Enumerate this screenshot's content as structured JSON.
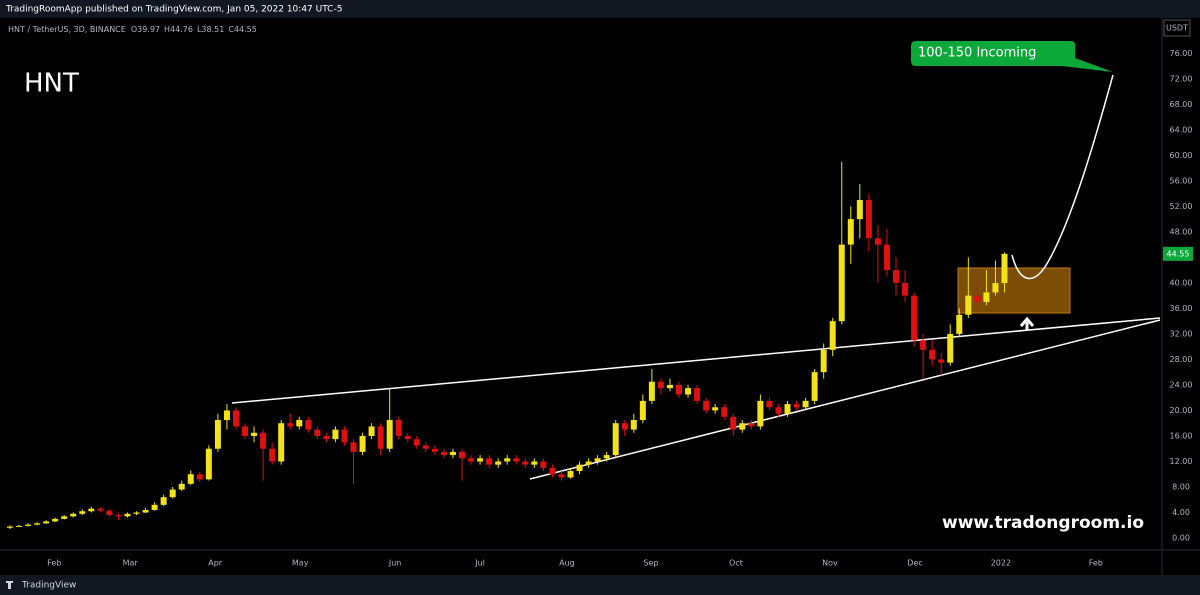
{
  "top_bar": "TradingRoomApp published on TradingView.com, Jan 05, 2022 10:47 UTC-5",
  "footer": "TradingView",
  "chart_data": {
    "type": "candlestick",
    "symbol": "HNT / TetherUS, 3D, BINANCE",
    "ohlc_legend_labels": [
      "O",
      "H",
      "L",
      "C"
    ],
    "title": "HNT",
    "annotations": [
      "100-150 Incoming",
      "www.tradongroom.io"
    ],
    "y_unit": "USDT",
    "up_color": "#f2e21a",
    "down_color": "#e01010",
    "grid": false,
    "xlim": [
      -1.1,
      127.2
    ],
    "xticks": [
      {
        "value": 4.9,
        "label": "Feb"
      },
      {
        "value": 13.3,
        "label": "Mar"
      },
      {
        "value": 22.7,
        "label": "Apr"
      },
      {
        "value": 32.1,
        "label": "May"
      },
      {
        "value": 42.6,
        "label": "Jun"
      },
      {
        "value": 52,
        "label": "Jul"
      },
      {
        "value": 61.6,
        "label": "Aug"
      },
      {
        "value": 70.9,
        "label": "Sep"
      },
      {
        "value": 80.3,
        "label": "Oct"
      },
      {
        "value": 90.7,
        "label": "Nov"
      },
      {
        "value": 100.1,
        "label": "Dec"
      },
      {
        "value": 109.6,
        "label": "2022"
      },
      {
        "value": 120.1,
        "label": "Feb"
      }
    ],
    "ylim": [
      -4.7,
      80.9
    ],
    "yticks": [
      {
        "value": 0,
        "label": "0.00"
      },
      {
        "value": 4,
        "label": "4.00"
      },
      {
        "value": 8,
        "label": "8.00"
      },
      {
        "value": 12,
        "label": "12.00"
      },
      {
        "value": 16,
        "label": "16.00"
      },
      {
        "value": 20,
        "label": "20.00"
      },
      {
        "value": 24,
        "label": "24.00"
      },
      {
        "value": 28,
        "label": "28.00"
      },
      {
        "value": 32,
        "label": "32.00"
      },
      {
        "value": 36,
        "label": "36.00"
      },
      {
        "value": 40,
        "label": "40.00"
      },
      {
        "value": 44,
        "label": "44.00"
      },
      {
        "value": 48,
        "label": "48.00"
      },
      {
        "value": 52,
        "label": "52.00"
      },
      {
        "value": 56,
        "label": "56.00"
      },
      {
        "value": 60,
        "label": "60.00"
      },
      {
        "value": 64,
        "label": "64.00"
      },
      {
        "value": 68,
        "label": "68.00"
      },
      {
        "value": 72,
        "label": "72.00"
      },
      {
        "value": 76,
        "label": "76.00"
      }
    ],
    "ohlc": [
      [
        1.6,
        2.0,
        1.4,
        1.8
      ],
      [
        1.8,
        2.1,
        1.7,
        1.9
      ],
      [
        1.9,
        2.3,
        1.8,
        2.1
      ],
      [
        2.1,
        2.5,
        2.0,
        2.3
      ],
      [
        2.3,
        2.8,
        2.2,
        2.6
      ],
      [
        2.6,
        3.2,
        2.5,
        3.0
      ],
      [
        3.0,
        3.6,
        2.9,
        3.4
      ],
      [
        3.4,
        4.0,
        3.2,
        3.8
      ],
      [
        3.8,
        4.5,
        3.6,
        4.2
      ],
      [
        4.2,
        4.9,
        4.0,
        4.6
      ],
      [
        4.6,
        4.8,
        4.0,
        4.3
      ],
      [
        4.3,
        4.5,
        3.3,
        3.6
      ],
      [
        3.6,
        3.9,
        2.8,
        3.4
      ],
      [
        3.4,
        4.0,
        3.2,
        3.8
      ],
      [
        3.8,
        4.2,
        3.6,
        4.0
      ],
      [
        4.0,
        4.7,
        3.9,
        4.4
      ],
      [
        4.4,
        5.6,
        4.3,
        5.2
      ],
      [
        5.2,
        6.8,
        5.0,
        6.4
      ],
      [
        6.4,
        8.0,
        6.2,
        7.6
      ],
      [
        7.6,
        9.0,
        7.4,
        8.5
      ],
      [
        8.5,
        10.6,
        8.3,
        10.0
      ],
      [
        10.0,
        10.4,
        8.8,
        9.2
      ],
      [
        9.2,
        14.5,
        9.0,
        14.0
      ],
      [
        14.0,
        19.5,
        13.5,
        18.5
      ],
      [
        18.5,
        21.0,
        17.0,
        20.0
      ],
      [
        20.0,
        20.5,
        17.0,
        17.5
      ],
      [
        17.5,
        18.0,
        15.5,
        16.0
      ],
      [
        16.0,
        17.5,
        15.0,
        16.5
      ],
      [
        16.5,
        17.0,
        9.0,
        14.0
      ],
      [
        14.0,
        15.0,
        11.5,
        12.0
      ],
      [
        12.0,
        18.5,
        11.5,
        18.0
      ],
      [
        18.0,
        19.5,
        17.0,
        17.5
      ],
      [
        17.5,
        19.0,
        17.0,
        18.5
      ],
      [
        18.5,
        19.0,
        16.5,
        17.0
      ],
      [
        17.0,
        17.5,
        15.5,
        16.0
      ],
      [
        16.0,
        16.5,
        15.0,
        15.5
      ],
      [
        15.5,
        17.5,
        15.0,
        17.0
      ],
      [
        17.0,
        17.5,
        14.5,
        15.0
      ],
      [
        15.0,
        15.5,
        8.5,
        13.5
      ],
      [
        13.5,
        16.5,
        13.0,
        16.0
      ],
      [
        16.0,
        18.0,
        15.5,
        17.5
      ],
      [
        17.5,
        18.0,
        13.0,
        14.0
      ],
      [
        14.0,
        23.5,
        13.5,
        18.5
      ],
      [
        18.5,
        19.0,
        15.5,
        16.0
      ],
      [
        16.0,
        16.5,
        15.0,
        15.5
      ],
      [
        15.5,
        16.0,
        14.0,
        14.5
      ],
      [
        14.5,
        15.0,
        13.5,
        14.0
      ],
      [
        14.0,
        14.5,
        13.0,
        13.5
      ],
      [
        13.5,
        14.0,
        12.5,
        13.0
      ],
      [
        13.0,
        14.0,
        12.5,
        13.5
      ],
      [
        13.5,
        14.0,
        9.0,
        12.5
      ],
      [
        12.5,
        13.0,
        11.5,
        12.0
      ],
      [
        12.0,
        13.0,
        11.5,
        12.5
      ],
      [
        12.5,
        13.0,
        11.0,
        11.5
      ],
      [
        11.5,
        12.5,
        11.0,
        12.0
      ],
      [
        12.0,
        13.0,
        11.5,
        12.5
      ],
      [
        12.5,
        13.0,
        11.5,
        12.0
      ],
      [
        12.0,
        12.5,
        11.0,
        11.5
      ],
      [
        11.5,
        12.5,
        11.0,
        12.0
      ],
      [
        12.0,
        12.5,
        10.5,
        11.0
      ],
      [
        11.0,
        11.5,
        9.5,
        10.0
      ],
      [
        10.0,
        10.5,
        9.0,
        9.5
      ],
      [
        9.5,
        11.0,
        9.3,
        10.5
      ],
      [
        10.5,
        12.0,
        10.0,
        11.5
      ],
      [
        11.5,
        12.5,
        11.0,
        12.0
      ],
      [
        12.0,
        13.0,
        11.5,
        12.5
      ],
      [
        12.5,
        13.5,
        12.0,
        13.0
      ],
      [
        13.0,
        18.5,
        12.5,
        18.0
      ],
      [
        18.0,
        18.5,
        16.0,
        17.0
      ],
      [
        17.0,
        19.5,
        16.5,
        18.5
      ],
      [
        18.5,
        22.5,
        18.0,
        21.5
      ],
      [
        21.5,
        26.5,
        21.0,
        24.5
      ],
      [
        24.5,
        25.0,
        22.5,
        23.5
      ],
      [
        23.5,
        25.0,
        23.0,
        24.0
      ],
      [
        24.0,
        24.5,
        22.0,
        22.5
      ],
      [
        22.5,
        24.0,
        22.0,
        23.5
      ],
      [
        23.5,
        24.0,
        21.0,
        21.5
      ],
      [
        21.5,
        22.0,
        19.5,
        20.0
      ],
      [
        20.0,
        21.0,
        19.5,
        20.5
      ],
      [
        20.5,
        21.0,
        18.5,
        19.0
      ],
      [
        19.0,
        19.5,
        16.0,
        17.0
      ],
      [
        17.0,
        18.5,
        16.5,
        18.0
      ],
      [
        18.0,
        18.5,
        17.0,
        17.5
      ],
      [
        17.5,
        22.5,
        17.0,
        21.5
      ],
      [
        21.5,
        22.0,
        20.0,
        20.5
      ],
      [
        20.5,
        21.0,
        19.0,
        19.5
      ],
      [
        19.5,
        21.5,
        19.0,
        21.0
      ],
      [
        21.0,
        21.5,
        20.0,
        20.5
      ],
      [
        20.5,
        22.0,
        20.0,
        21.5
      ],
      [
        21.5,
        26.5,
        21.0,
        26.0
      ],
      [
        26.0,
        30.5,
        25.0,
        29.5
      ],
      [
        29.5,
        34.5,
        28.5,
        34.0
      ],
      [
        34.0,
        59.0,
        33.5,
        46.0
      ],
      [
        46.0,
        52.0,
        43.0,
        50.0
      ],
      [
        50.0,
        55.5,
        47.0,
        53.0
      ],
      [
        53.0,
        54.0,
        45.0,
        47.0
      ],
      [
        47.0,
        49.0,
        40.0,
        46.0
      ],
      [
        46.0,
        48.5,
        41.0,
        42.0
      ],
      [
        42.0,
        44.0,
        38.0,
        40.0
      ],
      [
        40.0,
        42.0,
        37.0,
        38.0
      ],
      [
        38.0,
        38.5,
        30.0,
        31.0
      ],
      [
        31.0,
        32.0,
        25.0,
        29.5
      ],
      [
        29.5,
        31.0,
        27.0,
        28.0
      ],
      [
        28.0,
        29.0,
        25.5,
        27.5
      ],
      [
        27.5,
        33.5,
        27.0,
        32.0
      ],
      [
        32.0,
        36.0,
        31.5,
        35.0
      ],
      [
        35.0,
        44.0,
        34.5,
        38.0
      ],
      [
        38.0,
        40.0,
        35.5,
        37.0
      ],
      [
        37.0,
        42.0,
        36.5,
        38.5
      ],
      [
        38.5,
        43.5,
        38.0,
        39.97
      ],
      [
        39.97,
        44.76,
        38.51,
        44.55
      ]
    ]
  }
}
